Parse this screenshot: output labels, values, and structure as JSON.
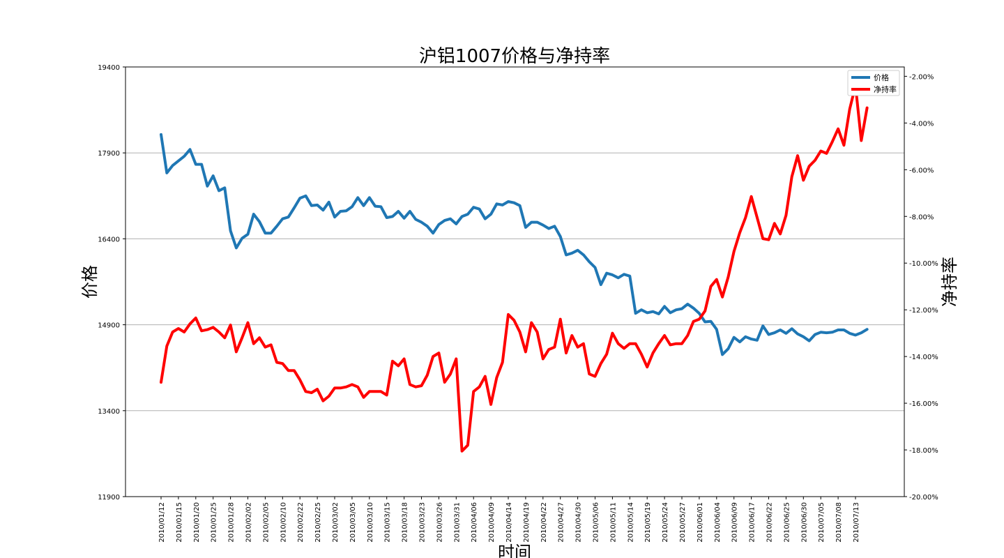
{
  "chart_data": {
    "type": "line",
    "title": "沪铝1007价格与净持率",
    "xlabel": "时间",
    "ylabel_left": "价格",
    "ylabel_right": "净持率",
    "left_axis": {
      "ylim": [
        11900,
        19400
      ],
      "ticks": [
        "11900",
        "13400",
        "14900",
        "16400",
        "17900",
        "19400"
      ]
    },
    "right_axis": {
      "ylim": [
        -20.0,
        -1.6
      ],
      "ticks": [
        "-20.00%",
        "-18.00%",
        "-16.00%",
        "-14.00%",
        "-12.00%",
        "-10.00%",
        "-8.00%",
        "-6.00%",
        "-4.00%",
        "-2.00%"
      ]
    },
    "grid": "horizontal, left axis",
    "legend_position": "top-right",
    "x_tick_labels": [
      "2010/01/12",
      "2010/01/15",
      "2010/01/20",
      "2010/01/25",
      "2010/01/28",
      "2010/02/02",
      "2010/02/05",
      "2010/02/10",
      "2010/02/22",
      "2010/02/25",
      "2010/03/02",
      "2010/03/05",
      "2010/03/10",
      "2010/03/15",
      "2010/03/18",
      "2010/03/23",
      "2010/03/26",
      "2010/03/31",
      "2010/04/06",
      "2010/04/09",
      "2010/04/14",
      "2010/04/19",
      "2010/04/22",
      "2010/04/27",
      "2010/04/30",
      "2010/05/06",
      "2010/05/11",
      "2010/05/14",
      "2010/05/19",
      "2010/05/24",
      "2010/05/27",
      "2010/06/01",
      "2010/06/04",
      "2010/06/09",
      "2010/06/17",
      "2010/06/22",
      "2010/06/25",
      "2010/06/30",
      "2010/07/05",
      "2010/07/08",
      "2010/07/13"
    ],
    "series": [
      {
        "name": "价格",
        "axis": "left",
        "color": "#1f77b4",
        "values": [
          18220,
          17550,
          17680,
          17760,
          17840,
          17960,
          17700,
          17700,
          17320,
          17500,
          17240,
          17290,
          16540,
          16240,
          16410,
          16480,
          16830,
          16700,
          16500,
          16500,
          16620,
          16750,
          16780,
          16940,
          17110,
          17150,
          16980,
          16990,
          16900,
          17040,
          16780,
          16880,
          16890,
          16960,
          17120,
          16980,
          17120,
          16970,
          16960,
          16770,
          16790,
          16880,
          16760,
          16880,
          16740,
          16690,
          16620,
          16500,
          16650,
          16720,
          16750,
          16660,
          16790,
          16830,
          16950,
          16920,
          16750,
          16830,
          17010,
          16990,
          17050,
          17030,
          16980,
          16600,
          16690,
          16690,
          16640,
          16580,
          16620,
          16440,
          16120,
          16150,
          16200,
          16120,
          16000,
          15900,
          15600,
          15800,
          15770,
          15720,
          15780,
          15750,
          15100,
          15160,
          15110,
          15130,
          15090,
          15220,
          15110,
          15160,
          15180,
          15260,
          15190,
          15100,
          14950,
          14960,
          14820,
          14380,
          14480,
          14680,
          14600,
          14690,
          14650,
          14630,
          14880,
          14730,
          14760,
          14810,
          14750,
          14830,
          14740,
          14690,
          14620,
          14730,
          14770,
          14760,
          14770,
          14810,
          14810,
          14750,
          14720,
          14760,
          14820
        ]
      },
      {
        "name": "净持率",
        "axis": "right",
        "color": "#ff0000",
        "values": [
          -15.1,
          -13.55,
          -12.95,
          -12.8,
          -12.95,
          -12.6,
          -12.35,
          -12.9,
          -12.85,
          -12.75,
          -12.95,
          -13.2,
          -12.65,
          -13.8,
          -13.2,
          -12.55,
          -13.45,
          -13.2,
          -13.6,
          -13.5,
          -14.25,
          -14.3,
          -14.6,
          -14.6,
          -15.0,
          -15.5,
          -15.55,
          -15.4,
          -15.9,
          -15.7,
          -15.35,
          -15.35,
          -15.3,
          -15.2,
          -15.3,
          -15.75,
          -15.5,
          -15.5,
          -15.5,
          -15.65,
          -14.2,
          -14.4,
          -14.1,
          -15.2,
          -15.3,
          -15.25,
          -14.8,
          -14.0,
          -13.85,
          -15.1,
          -14.75,
          -14.1,
          -18.05,
          -17.8,
          -15.5,
          -15.3,
          -14.85,
          -16.05,
          -14.9,
          -14.25,
          -12.2,
          -12.45,
          -12.95,
          -13.8,
          -12.55,
          -12.95,
          -14.1,
          -13.7,
          -13.6,
          -12.4,
          -13.85,
          -13.1,
          -13.6,
          -13.45,
          -14.75,
          -14.85,
          -14.3,
          -13.9,
          -13.0,
          -13.45,
          -13.65,
          -13.45,
          -13.45,
          -13.9,
          -14.45,
          -13.85,
          -13.45,
          -13.1,
          -13.5,
          -13.45,
          -13.45,
          -13.1,
          -12.5,
          -12.4,
          -12.05,
          -11.0,
          -10.7,
          -11.45,
          -10.6,
          -9.5,
          -8.7,
          -8.05,
          -7.15,
          -8.05,
          -8.95,
          -9.0,
          -8.3,
          -8.75,
          -7.95,
          -6.3,
          -5.4,
          -6.45,
          -5.85,
          -5.6,
          -5.2,
          -5.3,
          -4.8,
          -4.25,
          -4.95,
          -3.4,
          -2.4,
          -4.75,
          -3.35
        ]
      }
    ]
  }
}
